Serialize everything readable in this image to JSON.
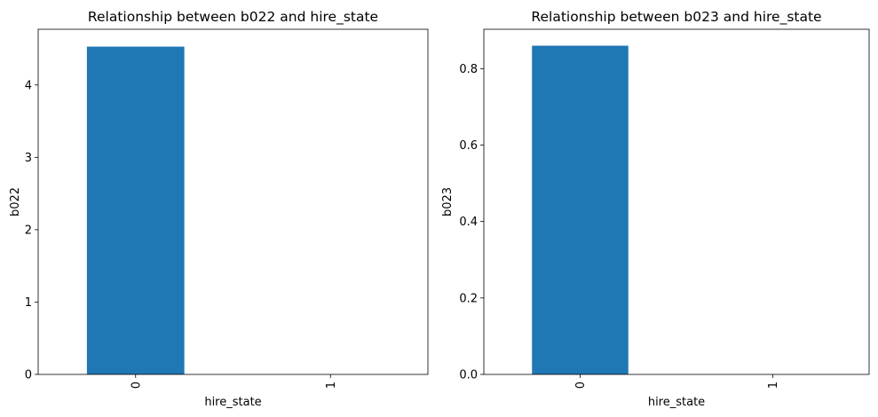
{
  "chart_data": [
    {
      "type": "bar",
      "title": "Relationship between b022 and hire_state",
      "xlabel": "hire_state",
      "ylabel": "b022",
      "categories": [
        "0",
        "1"
      ],
      "values": [
        4.53,
        0
      ],
      "ylim": [
        0,
        4.77
      ],
      "yticks": [
        0,
        1,
        2,
        3,
        4
      ],
      "ytick_labels": [
        "0",
        "1",
        "2",
        "3",
        "4"
      ],
      "grid": false,
      "bar_color": "#1f77b4"
    },
    {
      "type": "bar",
      "title": "Relationship between b023 and hire_state",
      "xlabel": "hire_state",
      "ylabel": "b023",
      "categories": [
        "0",
        "1"
      ],
      "values": [
        0.86,
        0
      ],
      "ylim": [
        0,
        0.903
      ],
      "yticks": [
        0.0,
        0.2,
        0.4,
        0.6,
        0.8
      ],
      "ytick_labels": [
        "0.0",
        "0.2",
        "0.4",
        "0.6",
        "0.8"
      ],
      "grid": false,
      "bar_color": "#1f77b4"
    }
  ]
}
